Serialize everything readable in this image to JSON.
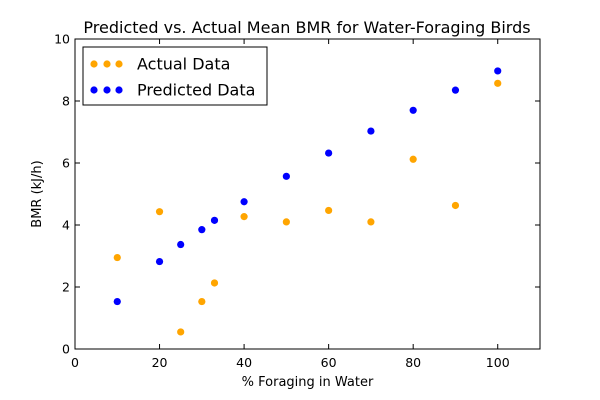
{
  "chart_data": {
    "type": "scatter",
    "title": "Predicted vs. Actual Mean BMR for Water-Foraging Birds",
    "xlabel": "% Foraging in Water",
    "ylabel": "BMR (kJ/h)",
    "xlim": [
      0,
      110
    ],
    "ylim": [
      0,
      10
    ],
    "xticks": [
      0,
      20,
      40,
      60,
      80,
      100
    ],
    "yticks": [
      0,
      2,
      4,
      6,
      8,
      10
    ],
    "grid": false,
    "legend": "top-left",
    "series": [
      {
        "name": "Actual Data",
        "color": "#FFA500",
        "x": [
          10,
          20,
          25,
          30,
          33,
          40,
          50,
          60,
          70,
          80,
          90,
          100
        ],
        "y": [
          2.95,
          4.43,
          0.55,
          1.53,
          2.13,
          4.27,
          4.1,
          4.47,
          4.1,
          6.12,
          4.63,
          8.57
        ]
      },
      {
        "name": "Predicted Data",
        "color": "#0000FF",
        "x": [
          10,
          20,
          25,
          30,
          33,
          40,
          50,
          60,
          70,
          80,
          90,
          100
        ],
        "y": [
          1.53,
          2.82,
          3.37,
          3.85,
          4.15,
          4.75,
          5.57,
          6.32,
          7.03,
          7.7,
          8.35,
          8.97
        ]
      }
    ]
  }
}
